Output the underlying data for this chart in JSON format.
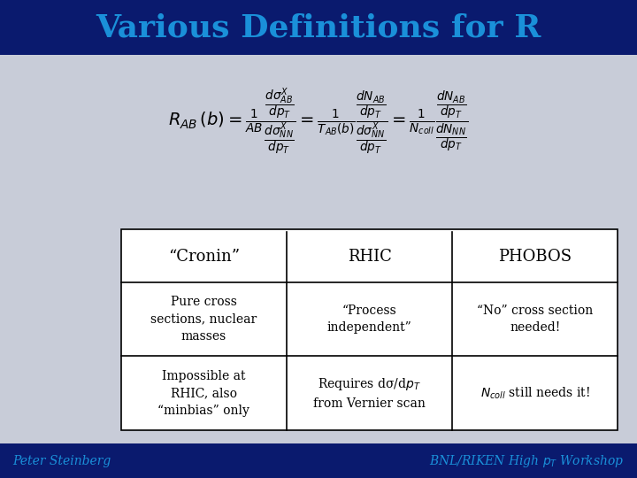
{
  "title": "Various Definitions for R",
  "title_color": "#1a90d9",
  "title_bg": "#0a1a6e",
  "body_bg": "#c8ccd8",
  "footer_left": "Peter Steinberg",
  "footer_right": "BNL/RIKEN High $p_T$ Workshop",
  "footer_color": "#1a90d9",
  "footer_bg": "#0a1a6e",
  "table_headers": [
    "“Cronin”",
    "RHIC",
    "PHOBOS"
  ],
  "row1_col1": "Pure cross\nsections, nuclear\nmasses",
  "row1_col2": "“Process\nindependent”",
  "row1_col3": "“No” cross section\nneeded!",
  "row2_col1": "Impossible at\nRHIC, also\n“minbias” only",
  "row2_col2": "Requires dσ/d$p_T$\nfrom Vernier scan",
  "row2_col3": "$N_{coll}$ still needs it!"
}
